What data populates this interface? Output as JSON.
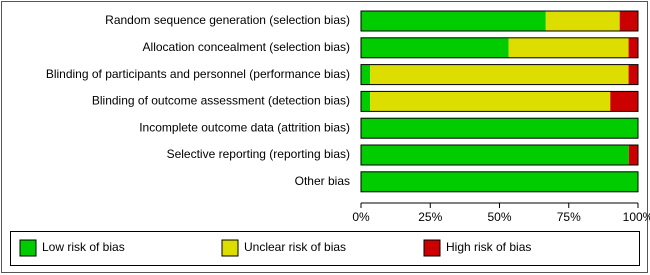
{
  "chart_data": {
    "type": "bar",
    "orientation": "horizontal",
    "stacked": true,
    "categories": [
      "Random sequence generation (selection bias)",
      "Allocation concealment (selection bias)",
      "Blinding of participants and personnel (performance bias)",
      "Blinding of outcome assessment (detection bias)",
      "Incomplete outcome data (attrition bias)",
      "Selective reporting (reporting bias)",
      "Other bias"
    ],
    "series": [
      {
        "name": "Low risk of bias",
        "color": "#00cc00",
        "values": [
          66.7,
          53.3,
          3.3,
          3.3,
          100,
          96.7,
          100
        ]
      },
      {
        "name": "Unclear risk of bias",
        "color": "#dddd00",
        "values": [
          26.7,
          43.3,
          93.3,
          86.7,
          0,
          0,
          0
        ]
      },
      {
        "name": "High risk of bias",
        "color": "#cc0000",
        "values": [
          6.7,
          3.3,
          3.3,
          10,
          0,
          3.3,
          0
        ]
      }
    ],
    "xlim": [
      0,
      100
    ],
    "xticks": [
      {
        "value": 0,
        "label": "0%"
      },
      {
        "value": 25,
        "label": "25%"
      },
      {
        "value": 50,
        "label": "50%"
      },
      {
        "value": 75,
        "label": "75%"
      },
      {
        "value": 100,
        "label": "100%"
      }
    ],
    "legend": "bottom"
  }
}
